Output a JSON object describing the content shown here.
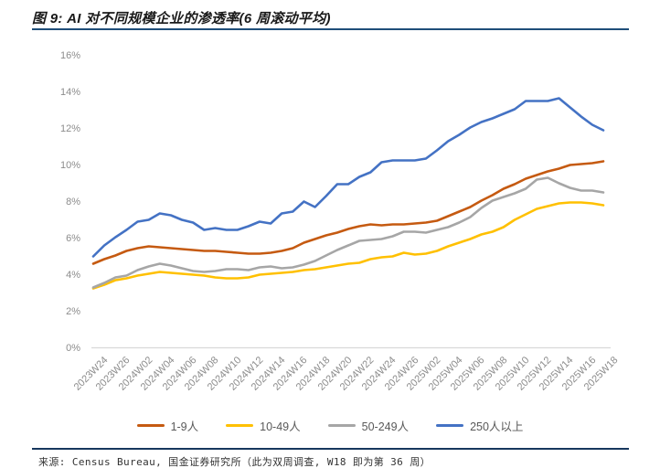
{
  "colors": {
    "title_text": "#1a1a1a",
    "title_rule": "#1F4E79",
    "footer_rule": "#17375E",
    "footer_text": "#333333",
    "axis_text": "#8C8C8C",
    "legend_text": "#595959",
    "axis_line": "#D9D9D9"
  },
  "footer": {
    "source": "来源: Census Bureau, 国金证券研究所（此为双周调查, W18 即为第 36 周）"
  },
  "chart_data": {
    "type": "line",
    "title": "图 9: AI 对不同规模企业的渗透率(6 周滚动平均)",
    "xlabel": "",
    "ylabel": "",
    "ylim": [
      0,
      16
    ],
    "y_tick_step": 2,
    "y_ticks": [
      "0%",
      "2%",
      "4%",
      "6%",
      "8%",
      "10%",
      "12%",
      "14%",
      "16%"
    ],
    "grid": false,
    "legend_position": "bottom",
    "points_per_tick": 2,
    "x_tick_labels": [
      "2023W24",
      "2023W26",
      "2024W02",
      "2024W04",
      "2024W06",
      "2024W08",
      "2024W10",
      "2024W12",
      "2024W14",
      "2024W16",
      "2024W18",
      "2024W20",
      "2024W22",
      "2024W24",
      "2024W26",
      "2025W02",
      "2025W04",
      "2025W06",
      "2025W08",
      "2025W10",
      "2025W12",
      "2025W14",
      "2025W16",
      "2025W18"
    ],
    "unit": "percent",
    "series": [
      {
        "name": "1-9人",
        "color": "#C55A11",
        "values": [
          4.6,
          4.85,
          5.05,
          5.3,
          5.45,
          5.55,
          5.5,
          5.45,
          5.4,
          5.35,
          5.3,
          5.3,
          5.25,
          5.2,
          5.15,
          5.15,
          5.2,
          5.3,
          5.45,
          5.75,
          5.95,
          6.15,
          6.3,
          6.5,
          6.65,
          6.75,
          6.7,
          6.75,
          6.75,
          6.8,
          6.85,
          6.95,
          7.2,
          7.45,
          7.7,
          8.05,
          8.35,
          8.7,
          8.95,
          9.25,
          9.45,
          9.65,
          9.8,
          10.0,
          10.05,
          10.1,
          10.2
        ]
      },
      {
        "name": "10-49人",
        "color": "#FFC000",
        "values": [
          3.25,
          3.45,
          3.7,
          3.8,
          3.95,
          4.05,
          4.15,
          4.1,
          4.05,
          4.0,
          3.95,
          3.85,
          3.8,
          3.8,
          3.85,
          4.0,
          4.05,
          4.1,
          4.15,
          4.25,
          4.3,
          4.4,
          4.5,
          4.6,
          4.65,
          4.85,
          4.95,
          5.0,
          5.2,
          5.1,
          5.15,
          5.3,
          5.55,
          5.75,
          5.95,
          6.2,
          6.35,
          6.6,
          7.0,
          7.3,
          7.6,
          7.75,
          7.9,
          7.95,
          7.95,
          7.9,
          7.8
        ]
      },
      {
        "name": "50-249人",
        "color": "#A6A6A6",
        "values": [
          3.3,
          3.55,
          3.85,
          3.95,
          4.25,
          4.45,
          4.6,
          4.5,
          4.35,
          4.2,
          4.15,
          4.2,
          4.3,
          4.3,
          4.25,
          4.4,
          4.45,
          4.35,
          4.4,
          4.55,
          4.75,
          5.05,
          5.35,
          5.6,
          5.85,
          5.9,
          5.95,
          6.1,
          6.35,
          6.35,
          6.3,
          6.45,
          6.6,
          6.85,
          7.15,
          7.65,
          8.05,
          8.25,
          8.45,
          8.7,
          9.2,
          9.3,
          9.0,
          8.75,
          8.6,
          8.6,
          8.5
        ]
      },
      {
        "name": "250人以上",
        "color": "#4472C4",
        "values": [
          5.0,
          5.6,
          6.05,
          6.45,
          6.9,
          7.0,
          7.35,
          7.25,
          7.0,
          6.85,
          6.45,
          6.55,
          6.45,
          6.45,
          6.65,
          6.9,
          6.8,
          7.35,
          7.45,
          8.0,
          7.7,
          8.3,
          8.95,
          8.95,
          9.35,
          9.6,
          10.15,
          10.25,
          10.25,
          10.25,
          10.35,
          10.8,
          11.3,
          11.65,
          12.05,
          12.35,
          12.55,
          12.8,
          13.05,
          13.5,
          13.5,
          13.5,
          13.65,
          13.15,
          12.65,
          12.2,
          11.9
        ]
      }
    ]
  }
}
